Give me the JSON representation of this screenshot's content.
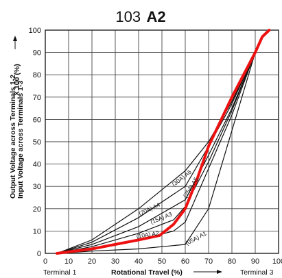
{
  "chart_data": {
    "type": "line",
    "title_number": "103",
    "title_code": "A2",
    "xlabel": "Rotational Travel (%)",
    "ylabel_line1": "Output Voltage across Terminals 1-2",
    "ylabel_line2": "Input Voltage across Terminals 1-3",
    "ylabel_factor": "X 100 (%)",
    "terminal_left": "Terminal 1",
    "terminal_right": "Terminal 3",
    "xlim": [
      0,
      100
    ],
    "ylim": [
      0,
      100
    ],
    "x_ticks": [
      "0",
      "10",
      "20",
      "30",
      "40",
      "50",
      "60",
      "70",
      "80",
      "90",
      "100"
    ],
    "y_ticks": [
      "0",
      "10",
      "20",
      "30",
      "40",
      "50",
      "60",
      "70",
      "80",
      "90",
      "100"
    ],
    "grid": true,
    "series": [
      {
        "name": "(30A) A6",
        "color": "#111111",
        "x": [
          5,
          20,
          40,
          60,
          70,
          80,
          90
        ],
        "y": [
          0,
          6,
          20,
          37,
          50,
          68,
          90
        ]
      },
      {
        "name": "(25A) A5",
        "color": "#111111",
        "x": [
          5,
          20,
          40,
          60,
          70,
          80,
          90
        ],
        "y": [
          0,
          5,
          16,
          30,
          48,
          67,
          90
        ]
      },
      {
        "name": "(20A) A4",
        "color": "#111111",
        "x": [
          5,
          20,
          40,
          60,
          70,
          80,
          90
        ],
        "y": [
          0,
          4,
          12,
          24,
          44,
          65,
          90
        ]
      },
      {
        "name": "(15A) A3",
        "color": "#111111",
        "x": [
          5,
          20,
          40,
          55,
          60,
          70,
          80,
          90
        ],
        "y": [
          0,
          3,
          9,
          15,
          21,
          41,
          64,
          90
        ]
      },
      {
        "name": "(10A) A2",
        "color": "#111111",
        "x": [
          5,
          20,
          40,
          55,
          60,
          70,
          80,
          90
        ],
        "y": [
          0,
          2,
          6,
          10,
          14,
          38,
          62,
          90
        ]
      },
      {
        "name": "(05A) A1",
        "color": "#111111",
        "x": [
          5,
          20,
          40,
          60,
          70,
          80,
          90
        ],
        "y": [
          0,
          1,
          2,
          4,
          20,
          55,
          90
        ]
      }
    ],
    "highlight": {
      "color": "#ee1111",
      "x": [
        5,
        20,
        40,
        49,
        55,
        60,
        65,
        70,
        80,
        90,
        93,
        96
      ],
      "y": [
        0,
        2,
        6,
        8,
        13,
        20,
        33,
        48,
        70,
        90,
        97,
        100
      ]
    }
  }
}
